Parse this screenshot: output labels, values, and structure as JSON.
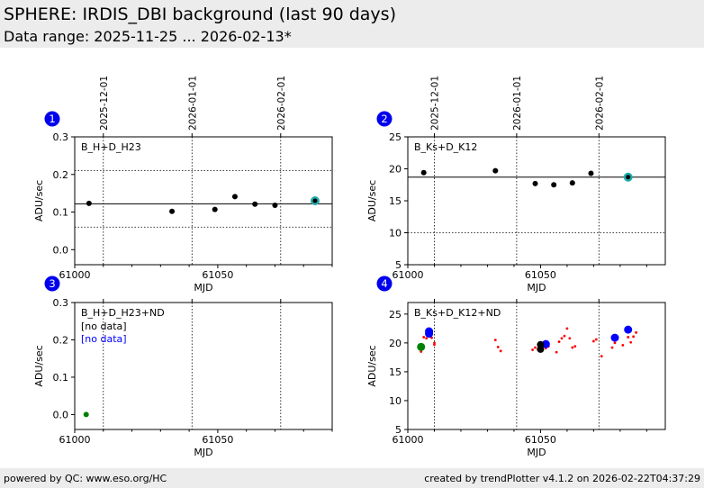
{
  "header": {
    "title": "SPHERE: IRDIS_DBI background (last 90 days)",
    "subtitle": "Data range: 2025-11-25 ... 2026-02-13*"
  },
  "footer": {
    "left": "powered by QC: www.eso.org/HC",
    "right": "created by trendPlotter v4.1.2 on 2026-02-22T04:37:29"
  },
  "colors": {
    "header_bg": "#ececec",
    "badge": "#0000ee",
    "point": "#000000",
    "highlight": "#22aaaa",
    "red": "#ff0000",
    "blue": "#0000ff",
    "green": "#008000"
  },
  "chart_data": [
    {
      "type": "scatter",
      "badge": "1",
      "label": "B_H+D_H23",
      "extra_labels": [],
      "xlabel": "MJD",
      "ylabel": "ADU/sec",
      "xlim": [
        61000,
        61090
      ],
      "ylim": [
        -0.04,
        0.3
      ],
      "xticks": [
        61000,
        61050
      ],
      "yticks": [
        0.0,
        0.1,
        0.2,
        0.3
      ],
      "ytick_labels": [
        "0.0",
        "0.1",
        "0.2",
        "0.3"
      ],
      "date_ticks": [
        {
          "mjd": 61010,
          "label": "2025-12-01"
        },
        {
          "mjd": 61041,
          "label": "2026-01-01"
        },
        {
          "mjd": 61072,
          "label": "2026-02-01"
        }
      ],
      "ref_line": 0.122,
      "limits": [
        0.21,
        0.06
      ],
      "series": [
        {
          "color": "#000000",
          "size": 3,
          "points": [
            [
              61005,
              0.123
            ],
            [
              61034,
              0.102
            ],
            [
              61049,
              0.107
            ],
            [
              61056,
              0.141
            ],
            [
              61063,
              0.121
            ],
            [
              61070,
              0.118
            ],
            [
              61084,
              0.13
            ]
          ]
        },
        {
          "color": "#22aaaa",
          "size": 5,
          "points": [
            [
              61084,
              0.13
            ]
          ]
        }
      ]
    },
    {
      "type": "scatter",
      "badge": "2",
      "label": "B_Ks+D_K12",
      "extra_labels": [],
      "xlabel": "MJD",
      "ylabel": "ADU/sec",
      "xlim": [
        61000,
        61097
      ],
      "ylim": [
        5,
        25
      ],
      "xticks": [
        61000,
        61050
      ],
      "yticks": [
        5,
        10,
        15,
        20,
        25
      ],
      "ytick_labels": [
        "5",
        "10",
        "15",
        "20",
        "25"
      ],
      "date_ticks": [
        {
          "mjd": 61010,
          "label": "2025-12-01"
        },
        {
          "mjd": 61041,
          "label": "2026-01-01"
        },
        {
          "mjd": 61072,
          "label": "2026-02-01"
        }
      ],
      "ref_line": 18.7,
      "limits": [
        10
      ],
      "series": [
        {
          "color": "#000000",
          "size": 3,
          "points": [
            [
              61006,
              19.4
            ],
            [
              61033,
              19.7
            ],
            [
              61048,
              17.7
            ],
            [
              61055,
              17.5
            ],
            [
              61062,
              17.8
            ],
            [
              61069,
              19.3
            ],
            [
              61083,
              18.7
            ]
          ]
        },
        {
          "color": "#22aaaa",
          "size": 5,
          "points": [
            [
              61083,
              18.7
            ]
          ]
        }
      ]
    },
    {
      "type": "scatter",
      "badge": "3",
      "label": "B_H+D_H23+ND",
      "extra_labels": [
        {
          "text": "[no data]",
          "color": "#000000"
        },
        {
          "text": "[no data]",
          "color": "#0000ff"
        }
      ],
      "xlabel": "MJD",
      "ylabel": "ADU/sec",
      "xlim": [
        61000,
        61090
      ],
      "ylim": [
        -0.04,
        0.3
      ],
      "xticks": [
        61000,
        61050
      ],
      "yticks": [
        0.0,
        0.1,
        0.2,
        0.3
      ],
      "ytick_labels": [
        "0.0",
        "0.1",
        "0.2",
        "0.3"
      ],
      "date_ticks": [
        {
          "mjd": 61010,
          "label": ""
        },
        {
          "mjd": 61041,
          "label": ""
        },
        {
          "mjd": 61072,
          "label": ""
        }
      ],
      "ref_line": null,
      "limits": [],
      "series": [
        {
          "color": "#008000",
          "size": 3,
          "points": [
            [
              61004,
              0.0
            ]
          ]
        }
      ]
    },
    {
      "type": "scatter",
      "badge": "4",
      "label": "B_Ks+D_K12+ND",
      "extra_labels": [],
      "xlabel": "MJD",
      "ylabel": "ADU/sec",
      "xlim": [
        61000,
        61097
      ],
      "ylim": [
        5,
        27
      ],
      "xticks": [
        61000,
        61050
      ],
      "yticks": [
        5,
        10,
        15,
        20,
        25
      ],
      "ytick_labels": [
        "5",
        "10",
        "15",
        "20",
        "25"
      ],
      "date_ticks": [
        {
          "mjd": 61010,
          "label": ""
        },
        {
          "mjd": 61041,
          "label": ""
        },
        {
          "mjd": 61072,
          "label": ""
        }
      ],
      "ref_line": null,
      "limits": [],
      "series": [
        {
          "color": "#ff0000",
          "size": 1.4,
          "points": [
            [
              61005,
              18.5
            ],
            [
              61006,
              21.0
            ],
            [
              61007,
              20.8
            ],
            [
              61008,
              21.2
            ],
            [
              61009,
              20.9
            ],
            [
              61010,
              19.7
            ],
            [
              61010,
              20.0
            ],
            [
              61033,
              20.5
            ],
            [
              61034,
              19.3
            ],
            [
              61035,
              18.6
            ],
            [
              61047,
              18.8
            ],
            [
              61048,
              19.2
            ],
            [
              61049,
              18.9
            ],
            [
              61051,
              19.6
            ],
            [
              61052,
              19.1
            ],
            [
              61053,
              19.4
            ],
            [
              61056,
              18.4
            ],
            [
              61057,
              20.2
            ],
            [
              61058,
              20.8
            ],
            [
              61059,
              21.2
            ],
            [
              61060,
              22.5
            ],
            [
              61061,
              20.8
            ],
            [
              61062,
              19.2
            ],
            [
              61063,
              19.4
            ],
            [
              61070,
              20.3
            ],
            [
              61071,
              20.6
            ],
            [
              61073,
              17.7
            ],
            [
              61077,
              19.2
            ],
            [
              61078,
              20.0
            ],
            [
              61079,
              21.0
            ],
            [
              61081,
              19.6
            ],
            [
              61083,
              21.0
            ],
            [
              61084,
              20.1
            ],
            [
              61085,
              21.1
            ],
            [
              61086,
              21.8
            ]
          ]
        },
        {
          "color": "#0000ff",
          "size": 4.5,
          "points": [
            [
              61008,
              21.6
            ],
            [
              61008,
              22.0
            ],
            [
              61052,
              19.8
            ],
            [
              61078,
              20.9
            ],
            [
              61083,
              22.3
            ]
          ]
        },
        {
          "color": "#000000",
          "size": 4,
          "points": [
            [
              61050,
              19.7
            ],
            [
              61050,
              18.9
            ]
          ]
        },
        {
          "color": "#008000",
          "size": 4.5,
          "points": [
            [
              61005,
              19.3
            ]
          ]
        }
      ]
    }
  ]
}
